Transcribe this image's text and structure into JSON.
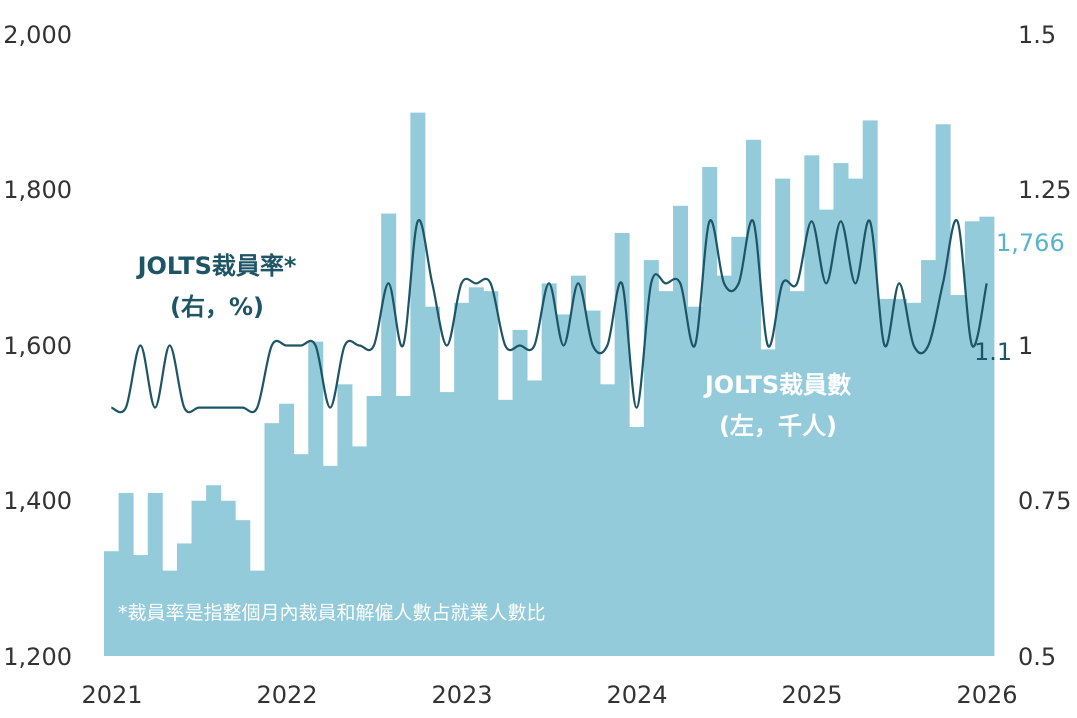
{
  "colors": {
    "bar": "#94cbdb",
    "line": "#1e5566",
    "last_bar_label": "#5ab4c9",
    "text": "#333333"
  },
  "chart_data": {
    "type": "bar+line",
    "series": [
      {
        "name": "JOLTS裁員數",
        "axis": "left",
        "type": "bar",
        "start": "2021-01",
        "values": [
          1335,
          1410,
          1330,
          1410,
          1310,
          1345,
          1400,
          1420,
          1400,
          1375,
          1310,
          1500,
          1525,
          1460,
          1605,
          1445,
          1550,
          1470,
          1535,
          1770,
          1535,
          1900,
          1650,
          1540,
          1655,
          1675,
          1670,
          1530,
          1620,
          1555,
          1680,
          1640,
          1690,
          1645,
          1550,
          1745,
          1495,
          1710,
          1670,
          1780,
          1650,
          1830,
          1690,
          1740,
          1865,
          1595,
          1815,
          1670,
          1845,
          1775,
          1835,
          1815,
          1890,
          1660,
          1660,
          1655,
          1710,
          1885,
          1665,
          1760,
          1766
        ]
      },
      {
        "name": "JOLTS裁員率*",
        "axis": "right",
        "type": "line",
        "start": "2021-01",
        "values": [
          0.9,
          0.9,
          1.0,
          0.9,
          1.0,
          0.9,
          0.9,
          0.9,
          0.9,
          0.9,
          0.9,
          1.0,
          1.0,
          1.0,
          1.0,
          0.9,
          1.0,
          1.0,
          1.0,
          1.1,
          1.0,
          1.2,
          1.1,
          1.0,
          1.1,
          1.1,
          1.1,
          1.0,
          1.0,
          1.0,
          1.1,
          1.0,
          1.1,
          1.0,
          1.0,
          1.1,
          0.9,
          1.1,
          1.1,
          1.1,
          1.0,
          1.2,
          1.1,
          1.1,
          1.2,
          1.0,
          1.1,
          1.1,
          1.2,
          1.1,
          1.2,
          1.1,
          1.2,
          1.0,
          1.1,
          1.0,
          1.0,
          1.1,
          1.2,
          1.0,
          1.1
        ]
      }
    ],
    "y_left": {
      "ylim": [
        1200,
        2000
      ],
      "ticks": [
        "1,200",
        "1,400",
        "1,600",
        "1,800",
        "2,000"
      ]
    },
    "y_right": {
      "ylim": [
        0.5,
        1.5
      ],
      "ticks": [
        "0.5",
        "0.75",
        "1",
        "1.25",
        "1.5"
      ]
    },
    "x_ticks": [
      "2021",
      "2022",
      "2023",
      "2024",
      "2025",
      "2026"
    ],
    "labels": {
      "line_label_1": "JOLTS裁員率*",
      "line_label_2": "(右，%)",
      "bar_label_1": "JOLTS裁員數",
      "bar_label_2": "(左，千人)",
      "last_bar_value": "1,766",
      "last_line_value": "1.1",
      "footnote": "*裁員率是指整個月內裁員和解僱人數占就業人數比"
    },
    "grid": false
  }
}
